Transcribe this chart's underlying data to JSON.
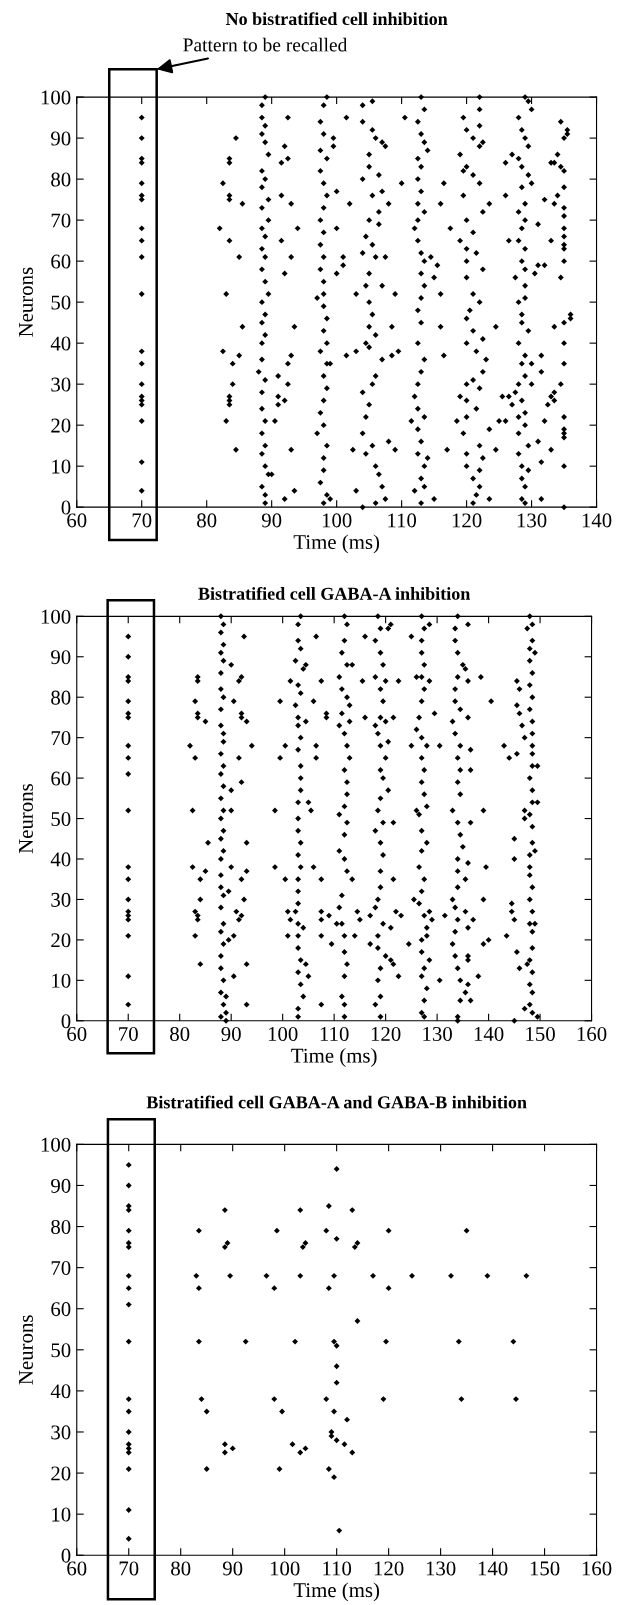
{
  "chart_data": [
    {
      "type": "scatter",
      "title": "No bistratified cell inhibition",
      "xlabel": "Time (ms)",
      "ylabel": "Neurons",
      "marker": "diamond",
      "grid": false,
      "xlim": [
        60,
        140
      ],
      "xticks": [
        60,
        70,
        80,
        90,
        100,
        110,
        120,
        130,
        140
      ],
      "ylim": [
        0,
        100
      ],
      "yticks": [
        0,
        10,
        20,
        30,
        40,
        50,
        60,
        70,
        80,
        90,
        100
      ],
      "bands": [
        {
          "axis": "x",
          "from": 65,
          "to": 72.3,
          "label": "Pattern to be recalled",
          "color": "#ffffff"
        }
      ],
      "series": [
        {
          "color": "#000000",
          "x": [
            70,
            70,
            70,
            70,
            70,
            70,
            70,
            70,
            70,
            70,
            70,
            70,
            70,
            70,
            70,
            70,
            70,
            70,
            70,
            70
          ],
          "values": [
            95,
            90,
            85,
            84,
            79,
            76,
            75,
            68,
            65,
            61,
            52,
            38,
            35,
            30,
            27,
            26,
            25,
            21,
            11,
            4
          ]
        },
        {
          "color": "#000000",
          "x": [
            82,
            82.5,
            83,
            82.5,
            83,
            83.5,
            83.5,
            83.5,
            83.5,
            83.5,
            83.5,
            83.5,
            83.5,
            84,
            84,
            84.5,
            84.5,
            85,
            85,
            85.5,
            85.5
          ],
          "values": [
            68,
            79,
            52,
            38,
            21,
            65,
            85,
            84,
            76,
            75,
            27,
            26,
            25,
            30,
            35,
            90,
            14,
            37,
            61,
            44,
            74
          ]
        },
        {
          "color": "#000000",
          "x": [
            88.5,
            89,
            88.5,
            89,
            88.5,
            89,
            89.5,
            88.5,
            89,
            88.5,
            89.5,
            88.5,
            89.5,
            88.5,
            89,
            88.5,
            89,
            88.5,
            89,
            89.5,
            88.5,
            89,
            88.5,
            89,
            88.5,
            88.5,
            88,
            89,
            88.5,
            88.5,
            89,
            88.5,
            89,
            88.5,
            89,
            89.5,
            88.5,
            89,
            89
          ],
          "values": [
            98,
            100,
            95,
            93,
            91,
            89,
            86,
            82,
            80,
            78,
            75,
            73,
            70,
            68,
            66,
            63,
            61,
            58,
            55,
            52,
            50,
            47,
            45,
            42,
            40,
            36,
            33,
            31,
            28,
            24,
            21,
            18,
            15,
            13,
            10,
            8,
            5,
            3,
            1
          ]
        },
        {
          "color": "#000000",
          "x": [
            92.5,
            92,
            92.5,
            91.5,
            91.5,
            93,
            94,
            91.5,
            93,
            92,
            93.5,
            93,
            92.5,
            91,
            92.5,
            91,
            92,
            91,
            90.5,
            93,
            90,
            92,
            93.5
          ],
          "values": [
            95,
            88,
            85,
            84,
            76,
            74,
            68,
            65,
            61,
            57,
            44,
            37,
            35,
            32,
            30,
            27,
            26,
            25,
            21,
            14,
            8,
            2,
            4
          ]
        },
        {
          "color": "#000000",
          "x": [
            98,
            98.5,
            97.5,
            98,
            97.5,
            98.5,
            97.5,
            98,
            98.5,
            98,
            97.5,
            98,
            97.5,
            98,
            97.5,
            98,
            98,
            97,
            98,
            98.5,
            98,
            98.5,
            97.5,
            98.5,
            98,
            98.5,
            98,
            97.5,
            98,
            97,
            98.5,
            98,
            98,
            97.5,
            98.5,
            98
          ],
          "values": [
            98,
            100,
            94,
            91,
            87,
            85,
            82,
            79,
            76,
            73,
            70,
            67,
            64,
            61,
            58,
            55,
            52,
            51,
            49,
            46,
            43,
            40,
            38,
            35,
            32,
            29,
            26,
            23,
            20,
            18,
            15,
            12,
            9,
            6,
            3,
            1
          ]
        },
        {
          "color": "#000000",
          "x": [
            99.5,
            99.5,
            100,
            100,
            101,
            101,
            100,
            101.5,
            101.5,
            99,
            102,
            103,
            103,
            102.5,
            103,
            99
          ],
          "values": [
            90,
            88,
            77,
            68,
            61,
            59,
            57,
            95,
            37,
            35,
            74,
            52,
            38,
            14,
            4,
            2
          ]
        },
        {
          "color": "#000000",
          "x": [
            104,
            104,
            105.5,
            105.5,
            106,
            107,
            107.5,
            105,
            105,
            104,
            106.5,
            105.5,
            107,
            106.5,
            105,
            106.5,
            104.5,
            105.5,
            104,
            106,
            107.5,
            105,
            104.5,
            107,
            105,
            105.5,
            105,
            106,
            104.5,
            105,
            107,
            106,
            105.5,
            104,
            105,
            104.5,
            104,
            105.5,
            104.5,
            106,
            106.5,
            107,
            106,
            104,
            107.5,
            108,
            109,
            108.5,
            109.5,
            109,
            108,
            110,
            110.5,
            108.5
          ],
          "values": [
            98,
            94,
            99,
            92,
            90,
            89,
            88,
            86,
            83,
            80,
            81,
            76,
            77,
            72,
            70,
            69,
            66,
            64,
            62,
            61,
            61,
            57,
            54,
            54,
            50,
            47,
            44,
            42,
            40,
            39,
            36,
            32,
            30,
            28,
            25,
            22,
            18,
            15,
            13,
            10,
            8,
            5,
            1,
            0,
            2,
            16,
            14,
            37,
            38,
            52,
            74,
            79,
            95,
            44
          ]
        },
        {
          "color": "#000000",
          "x": [
            113,
            113.5,
            112.5,
            113,
            113.5,
            114,
            112.5,
            113,
            112.5,
            113,
            112.5,
            113.5,
            112.5,
            112,
            112.5,
            113,
            113.5,
            113,
            113.5,
            113,
            112.5,
            113,
            112.5,
            113.5,
            113,
            112.5,
            112,
            112.5,
            113.5,
            112.5,
            113,
            112.5,
            113.5,
            113,
            113.5,
            113,
            112,
            111.5,
            115,
            114,
            115,
            115.5,
            114.5,
            116,
            116.5,
            116,
            116,
            116.5,
            117.5,
            117
          ],
          "values": [
            100,
            97,
            94,
            91,
            89,
            87,
            85,
            83,
            80,
            77,
            74,
            72,
            70,
            68,
            65,
            62,
            60,
            57,
            54,
            51,
            48,
            45,
            40,
            36,
            33,
            30,
            27,
            24,
            22,
            19,
            16,
            13,
            10,
            7,
            5,
            1,
            4,
            21,
            2,
            12,
            56,
            59,
            61,
            44,
            37,
            52,
            74,
            79,
            68,
            14
          ]
        },
        {
          "color": "#000000",
          "x": [
            122,
            122,
            119.5,
            120,
            121,
            122,
            119,
            120,
            121,
            122,
            119.5,
            122.5,
            120,
            121,
            119,
            120,
            121.5,
            120,
            122.5,
            120,
            121,
            122,
            120.5,
            120,
            121,
            122.5,
            120,
            121.5,
            123,
            122.5,
            121,
            120,
            122,
            119,
            120,
            121.5,
            120,
            118.5,
            119.5,
            122,
            120,
            122.5,
            120,
            122,
            121,
            122,
            121.5,
            121,
            123.5,
            124.5,
            123.5,
            124.5,
            122.5,
            123.5,
            125.5,
            125,
            119.5,
            122
          ],
          "values": [
            100,
            97,
            95,
            92,
            90,
            88,
            86,
            83,
            81,
            79,
            76,
            72,
            70,
            67,
            65,
            63,
            62,
            60,
            58,
            56,
            52,
            50,
            48,
            46,
            43,
            41,
            40,
            38,
            36,
            33,
            31,
            30,
            29,
            27,
            26,
            24,
            22,
            21,
            18,
            15,
            13,
            12,
            10,
            9,
            7,
            5,
            3,
            1,
            2,
            14,
            74,
            44,
            89,
            19,
            27,
            21,
            82,
            93
          ]
        },
        {
          "color": "#000000",
          "x": [
            129,
            129.5,
            130,
            128,
            128.5,
            129,
            129.5,
            128,
            128.5,
            129.5,
            130,
            128.5,
            129,
            128,
            129,
            128.5,
            128,
            129,
            128.5,
            129,
            127.5,
            129,
            129,
            128,
            128.5,
            128.5,
            129.5,
            128,
            129,
            128.5,
            129,
            128,
            127.5,
            128.5,
            129,
            128,
            129,
            128,
            129.5,
            128,
            128.5,
            129.5,
            128.5,
            129,
            128.5,
            129,
            126.5,
            126,
            127,
            126,
            126.5,
            127,
            126,
            131,
            131,
            130.5,
            131.5,
            131.5,
            131,
            131.5,
            131.5,
            130,
            130
          ],
          "values": [
            100,
            99,
            97,
            95,
            92,
            90,
            88,
            85,
            83,
            81,
            79,
            78,
            74,
            72,
            70,
            68,
            65,
            63,
            60,
            58,
            56,
            54,
            51,
            50,
            47,
            45,
            43,
            40,
            37,
            35,
            32,
            30,
            28,
            26,
            23,
            22,
            20,
            18,
            15,
            13,
            10,
            9,
            7,
            5,
            2,
            1,
            65,
            76,
            86,
            84,
            27,
            25,
            21,
            69,
            59,
            57,
            37,
            33,
            16,
            11,
            2,
            30,
            35
          ]
        },
        {
          "color": "#000000",
          "x": [
            134.5,
            135.5,
            135.5,
            135,
            134,
            133.5,
            134.5,
            135,
            135,
            134,
            133.5,
            135,
            135,
            135,
            135,
            135,
            135,
            135,
            134.5,
            136,
            136,
            135,
            135,
            135,
            134.5,
            133.5,
            133,
            132.5,
            133.5,
            135,
            135,
            135,
            135,
            135,
            135,
            132,
            133,
            132,
            133,
            133.5,
            132,
            133
          ],
          "values": [
            94,
            92,
            91,
            90,
            86,
            84,
            83,
            82,
            78,
            76,
            74,
            73,
            71,
            68,
            66,
            64,
            63,
            60,
            56,
            47,
            46,
            45,
            40,
            35,
            30,
            28,
            27,
            25,
            26,
            22,
            19,
            18,
            17,
            10,
            0,
            59,
            65,
            21,
            14,
            44,
            75,
            84
          ]
        }
      ]
    },
    {
      "type": "scatter",
      "title": "Bistratified cell GABA-A inhibition",
      "xlabel": "Time (ms)",
      "ylabel": "Neurons",
      "marker": "diamond",
      "grid": false,
      "xlim": [
        60,
        160
      ],
      "xticks": [
        60,
        70,
        80,
        90,
        100,
        110,
        120,
        130,
        140,
        150,
        160
      ],
      "ylim": [
        0,
        100
      ],
      "yticks": [
        0,
        10,
        20,
        30,
        40,
        50,
        60,
        70,
        80,
        90,
        100
      ],
      "bands": [
        {
          "axis": "x",
          "from": 66,
          "to": 75,
          "color": "#ffffff"
        }
      ],
      "series": [
        {
          "color": "#000000",
          "x": [
            70,
            70,
            70,
            70,
            70,
            70,
            70,
            70,
            70,
            70,
            70,
            70,
            70,
            70,
            70,
            70,
            70,
            70,
            70,
            70
          ],
          "values": [
            95,
            90,
            85,
            84,
            79,
            76,
            75,
            68,
            65,
            61,
            52,
            38,
            35,
            30,
            27,
            26,
            25,
            21,
            11,
            4
          ]
        },
        {
          "color": "#000000",
          "x": [
            82,
            82.5,
            82.5,
            83,
            83,
            83,
            83,
            83.5,
            83.5,
            83.5,
            83.5,
            83.5,
            83.5,
            84,
            84,
            84,
            85,
            85,
            85.5
          ],
          "values": [
            68,
            52,
            38,
            79,
            65,
            27,
            21,
            85,
            84,
            76,
            75,
            26,
            25,
            35,
            30,
            14,
            37,
            74,
            44
          ]
        },
        {
          "color": "#000000",
          "x": [
            88,
            88.5,
            88,
            88.5,
            88,
            88.5,
            88,
            88,
            88.5,
            88,
            88,
            88.5,
            88.5,
            88,
            88.5,
            88,
            88.5,
            88,
            88.5,
            88,
            88.5,
            88,
            88.5,
            88,
            88,
            88,
            88.5,
            88,
            88.5,
            88,
            88.5,
            88,
            88,
            88.5,
            88,
            88.5,
            88,
            89
          ],
          "values": [
            100,
            98,
            96,
            93,
            91,
            89,
            86,
            82,
            80,
            77,
            73,
            71,
            69,
            66,
            63,
            61,
            58,
            55,
            52,
            50,
            47,
            45,
            42,
            40,
            36,
            33,
            31,
            28,
            24,
            22,
            19,
            16,
            13,
            10,
            7,
            4,
            1,
            0
          ]
        },
        {
          "color": "#000000",
          "x": [
            90,
            91.5,
            92,
            90.5,
            92,
            92,
            93,
            94,
            91.5,
            92,
            90,
            90,
            93,
            93,
            92,
            89.5,
            92.5,
            91,
            91.5,
            92,
            89.5,
            90.5,
            93,
            90.5,
            93,
            89,
            89,
            92.5,
            90
          ],
          "values": [
            88,
            84,
            85,
            79,
            76,
            75,
            74,
            68,
            65,
            59,
            57,
            52,
            44,
            37,
            35,
            32,
            30,
            27,
            25,
            26,
            20,
            21,
            14,
            11,
            4,
            2,
            6,
            95,
            38
          ]
        },
        {
          "color": "#000000",
          "x": [
            103.5,
            103,
            103,
            103.5,
            102.5,
            104,
            103,
            103.5,
            102.5,
            103,
            103,
            103.5,
            103,
            103.5,
            103.5,
            103.5,
            103,
            103,
            103,
            103.5,
            103,
            103.5,
            103,
            103,
            103,
            102.5,
            103,
            103,
            103,
            103.5,
            103,
            103.5,
            104,
            103,
            103,
            101,
            101.5,
            101,
            100.5,
            100.5,
            99.5,
            101.5,
            104.5,
            105,
            105.5,
            104,
            104.5,
            105,
            104.5,
            106,
            98.5,
            98.5,
            99.5,
            106.5,
            106.5,
            106.5,
            106,
            107.5,
            107.5,
            107.5,
            107.5,
            107.5,
            107.5,
            108.5,
            108.5,
            109,
            109.5
          ],
          "values": [
            100,
            98,
            94,
            92,
            89,
            87,
            83,
            81,
            78,
            75,
            73,
            70,
            67,
            63,
            60,
            57,
            54,
            50,
            47,
            44,
            41,
            38,
            35,
            32,
            29,
            27,
            24,
            21,
            18,
            15,
            12,
            9,
            6,
            3,
            1,
            27,
            25,
            21,
            35,
            68,
            65,
            84,
            74,
            54,
            52,
            23,
            14,
            11,
            88,
            38,
            52,
            38,
            79,
            95,
            68,
            65,
            79,
            84,
            35,
            27,
            25,
            21,
            4,
            76,
            75,
            26,
            19
          ]
        },
        {
          "color": "#000000",
          "x": [
            112,
            112.5,
            112,
            111.5,
            112.5,
            111,
            111.5,
            112.5,
            111.5,
            111,
            112,
            112.5,
            113,
            112,
            112.5,
            112.5,
            112,
            111,
            112.5,
            112,
            111,
            112,
            112.5,
            113.5,
            111.5,
            111,
            111.5,
            112,
            112,
            112.5,
            112,
            111.5,
            112,
            112,
            113,
            114.5,
            115,
            114,
            110.5,
            115.5,
            116,
            116,
            117,
            113.5,
            113
          ],
          "values": [
            100,
            98,
            94,
            91,
            88,
            85,
            82,
            80,
            76,
            73,
            71,
            68,
            65,
            62,
            59,
            56,
            53,
            51,
            49,
            46,
            42,
            40,
            37,
            35,
            31,
            28,
            24,
            21,
            17,
            14,
            11,
            6,
            4,
            1,
            74,
            27,
            25,
            21,
            24,
            84,
            75,
            95,
            26,
            88,
            78
          ]
        },
        {
          "color": "#000000",
          "x": [
            118.5,
            119,
            118,
            119,
            119.5,
            118,
            119,
            119.5,
            119,
            118,
            118.5,
            119,
            120,
            119,
            119.5,
            120.5,
            119,
            118.5,
            119.5,
            118,
            119,
            119.5,
            119,
            119,
            118.5,
            118,
            119.5,
            118.5,
            118.5,
            120,
            119,
            118.5,
            119,
            118,
            119,
            120.5,
            121,
            120,
            121.5,
            121.5,
            120.5,
            121.5,
            121,
            122,
            123,
            122.5,
            121,
            121.5,
            117,
            120,
            122.5,
            125,
            125,
            124.5
          ],
          "values": [
            100,
            97,
            94,
            91,
            88,
            85,
            82,
            79,
            75,
            73,
            71,
            68,
            65,
            62,
            60,
            57,
            55,
            52,
            49,
            47,
            44,
            41,
            37,
            33,
            30,
            28,
            24,
            21,
            18,
            16,
            13,
            10,
            6,
            4,
            1,
            97,
            98,
            84,
            75,
            49,
            69,
            35,
            23,
            27,
            26,
            11,
            15,
            14,
            19,
            74,
            84,
            95,
            68,
            19
          ]
        },
        {
          "color": "#000000",
          "x": [
            127,
            127.5,
            127,
            127,
            127.5,
            127,
            127.5,
            127,
            126.5,
            126,
            127,
            128,
            127,
            127.5,
            127,
            127.5,
            128,
            126.5,
            127,
            128,
            127,
            126.5,
            127.5,
            127,
            126.5,
            127.5,
            128,
            127,
            127,
            128.5,
            127.5,
            127,
            128,
            127.5,
            127,
            127.5,
            128.5,
            128.5,
            129.5,
            130.5,
            128.5,
            129,
            128,
            126,
            125.5,
            126,
            130.5,
            131.5
          ],
          "values": [
            100,
            97,
            94,
            91,
            88,
            85,
            82,
            79,
            75,
            72,
            70,
            68,
            65,
            62,
            59,
            56,
            53,
            51,
            47,
            44,
            42,
            38,
            35,
            32,
            29,
            26,
            23,
            20,
            17,
            15,
            13,
            11,
            8,
            5,
            2,
            1,
            98,
            84,
            76,
            68,
            27,
            25,
            21,
            52,
            30,
            85,
            10,
            26
          ]
        },
        {
          "color": "#000000",
          "x": [
            134,
            133.5,
            133.5,
            134,
            135,
            134,
            133.5,
            133.5,
            134.5,
            133,
            133.5,
            134.5,
            134,
            134.5,
            134,
            134.5,
            133,
            134,
            134.5,
            135,
            134,
            134,
            134,
            133,
            133.5,
            134,
            133.5,
            133,
            133.5,
            134,
            134.5,
            135.5,
            134.5,
            134,
            134,
            136,
            135.5,
            136,
            136,
            136.5,
            136.5,
            136,
            135.5,
            135.5,
            136,
            136,
            136,
            136,
            136.5,
            137,
            138,
            139,
            139,
            139,
            139.5,
            138.5,
            140.5,
            140,
            136.5
          ],
          "values": [
            100,
            97,
            94,
            91,
            88,
            85,
            82,
            79,
            77,
            74,
            71,
            68,
            65,
            62,
            59,
            56,
            52,
            49,
            46,
            43,
            40,
            37,
            33,
            30,
            28,
            25,
            22,
            19,
            16,
            13,
            10,
            7,
            5,
            1,
            0,
            98,
            87,
            84,
            75,
            62,
            49,
            39,
            35,
            27,
            23,
            16,
            15,
            9,
            5,
            25,
            11,
            19,
            30,
            52,
            38,
            85,
            79,
            20,
            67
          ]
        },
        {
          "color": "#000000",
          "x": [
            148,
            148.5,
            147.5,
            148.5,
            148,
            149,
            148,
            148.5,
            148,
            148.5,
            148,
            148.5,
            148.5,
            148.5,
            148.5,
            148.5,
            148,
            148.5,
            148.5,
            148,
            148.5,
            148.5,
            148,
            148,
            148,
            148.5,
            148,
            148.5,
            148,
            148.5,
            148.5,
            148,
            148.5,
            148,
            148.5,
            148,
            148.5,
            149.5,
            147,
            149.5,
            149.5,
            149,
            149,
            147,
            147,
            146,
            145.5,
            145.5,
            146.5,
            147,
            145.5,
            144,
            143,
            146,
            145,
            145,
            144.5,
            144.5,
            145,
            143.5,
            145.5,
            146,
            145,
            147.5
          ],
          "values": [
            100,
            98,
            97,
            94,
            92,
            91,
            89,
            86,
            83,
            80,
            77,
            74,
            71,
            68,
            66,
            63,
            60,
            57,
            54,
            51,
            48,
            44,
            41,
            38,
            36,
            33,
            30,
            27,
            24,
            22,
            18,
            15,
            12,
            9,
            7,
            4,
            2,
            1,
            3,
            63,
            54,
            42,
            24,
            52,
            50,
            82,
            84,
            78,
            73,
            70,
            66,
            65,
            68,
            76,
            45,
            40,
            29,
            27,
            25,
            21,
            17,
            13,
            0,
            14
          ]
        }
      ]
    },
    {
      "type": "scatter",
      "title": "Bistratified cell GABA-A and GABA-B inhibition",
      "xlabel": "Time (ms)",
      "ylabel": "Neurons",
      "marker": "diamond",
      "grid": false,
      "xlim": [
        60,
        160
      ],
      "xticks": [
        60,
        70,
        80,
        90,
        100,
        110,
        120,
        130,
        140,
        150,
        160
      ],
      "ylim": [
        0,
        100
      ],
      "yticks": [
        0,
        10,
        20,
        30,
        40,
        50,
        60,
        70,
        80,
        90,
        100
      ],
      "bands": [
        {
          "axis": "x",
          "from": 66,
          "to": 75,
          "color": "#ffffff"
        }
      ],
      "series": [
        {
          "color": "#000000",
          "x": [
            70,
            70,
            70,
            70,
            70,
            70,
            70,
            70,
            70,
            70,
            70,
            70,
            70,
            70,
            70,
            70,
            70,
            70,
            70,
            70
          ],
          "values": [
            95,
            90,
            85,
            84,
            79,
            76,
            75,
            68,
            65,
            61,
            52,
            38,
            35,
            30,
            27,
            26,
            25,
            21,
            11,
            4
          ]
        },
        {
          "color": "#000000",
          "x": [
            83.5,
            83,
            83.5,
            83.5,
            84,
            85,
            85,
            88.5,
            89,
            88.5,
            89.5,
            88.5,
            88.5,
            90,
            92.5,
            98.5,
            96.5,
            98,
            98,
            99.5,
            99,
            103,
            104,
            103.5,
            103,
            102,
            101.5,
            103,
            104
          ],
          "values": [
            79,
            68,
            65,
            52,
            38,
            35,
            21,
            84,
            76,
            75,
            68,
            27,
            25,
            26,
            52,
            79,
            68,
            65,
            38,
            35,
            21,
            84,
            76,
            75,
            68,
            52,
            27,
            25,
            26
          ]
        },
        {
          "color": "#000000",
          "x": [
            108.5,
            108,
            110,
            109.5,
            108.5,
            109.5,
            110,
            110,
            110,
            108,
            109.5,
            112,
            109,
            109,
            110,
            111.5,
            113,
            108.5,
            109.5,
            110.5,
            110
          ],
          "values": [
            85,
            79,
            77,
            68,
            65,
            52,
            51,
            46,
            42,
            38,
            35,
            33,
            30,
            29,
            28,
            27,
            25,
            21,
            19,
            6,
            94
          ]
        },
        {
          "color": "#000000",
          "x": [
            113,
            114,
            113.5,
            114,
            117,
            120,
            120,
            119.5,
            119,
            124.5,
            132,
            135,
            133.5,
            134,
            139,
            144,
            144.5,
            146.5
          ],
          "values": [
            84,
            76,
            75,
            57,
            68,
            79,
            65,
            52,
            38,
            68,
            68,
            79,
            52,
            38,
            68,
            52,
            38,
            68
          ]
        }
      ]
    }
  ]
}
